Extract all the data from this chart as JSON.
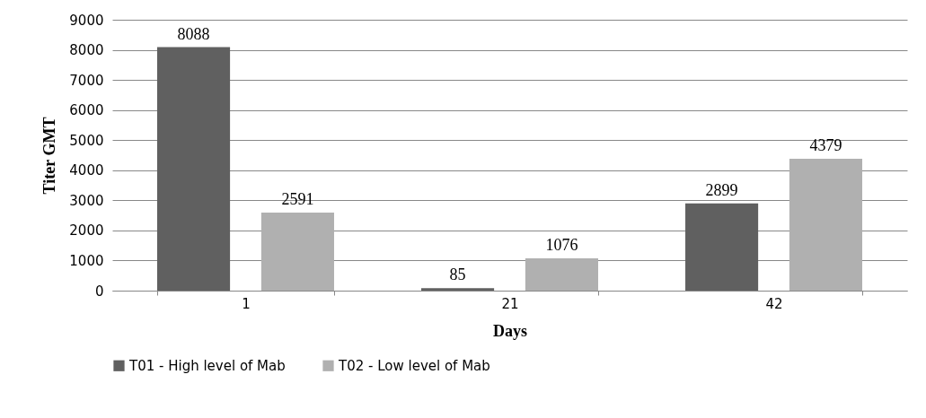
{
  "chart_data": {
    "type": "bar",
    "xlabel": "Days",
    "ylabel": "Titer GMT",
    "categories": [
      "1",
      "21",
      "42"
    ],
    "series": [
      {
        "name": "T01 - High level of Mab",
        "color": "#606060",
        "values": [
          8088,
          85,
          2899
        ]
      },
      {
        "name": "T02 - Low level of Mab",
        "color": "#b0b0b0",
        "values": [
          2591,
          1076,
          4379
        ]
      }
    ],
    "ylim": [
      0,
      9000
    ],
    "yticks": [
      0,
      1000,
      2000,
      3000,
      4000,
      5000,
      6000,
      7000,
      8000,
      9000
    ],
    "grid": "y",
    "legend": "bottom",
    "data_labels": true
  }
}
